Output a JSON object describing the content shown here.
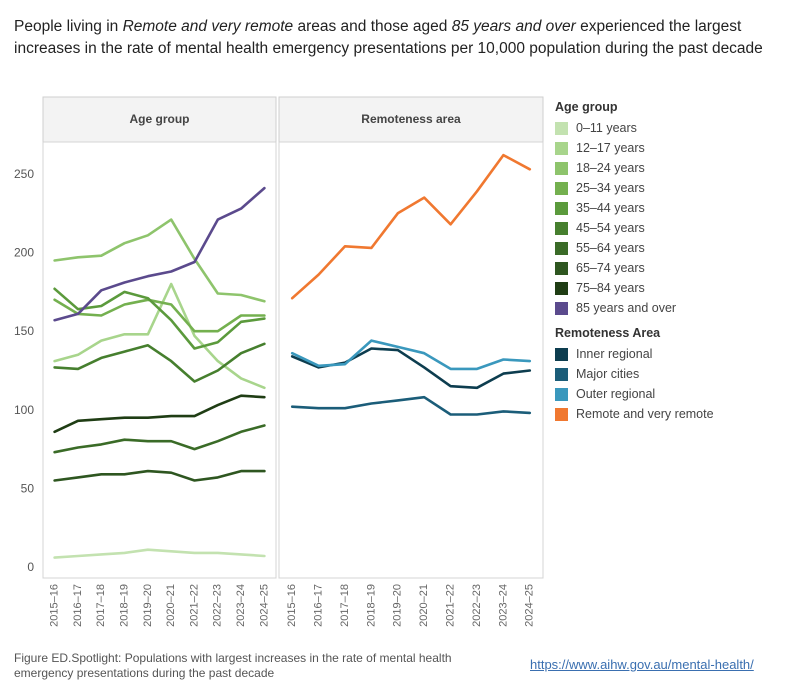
{
  "title": {
    "p1": "People living in ",
    "em1": "Remote and very remote",
    "p2": " areas and those aged ",
    "em2": "85 years and over",
    "p3": " experienced the largest increases in the rate of mental health emergency presentations per 10,000 population during the past decade"
  },
  "footer": {
    "caption": "Figure ED.Spotlight: Populations with largest increases in the rate of mental health emergency presentations during the past decade",
    "link": "https://www.aihw.gov.au/mental-health/"
  },
  "chart_data": {
    "type": "line",
    "ylim": [
      0,
      260
    ],
    "yticks": [
      0,
      50,
      100,
      150,
      200,
      250
    ],
    "categories": [
      "2015–16",
      "2016–17",
      "2017–18",
      "2018–19",
      "2019–20",
      "2020–21",
      "2021–22",
      "2022–23",
      "2023–24",
      "2024–25"
    ],
    "panels": [
      {
        "title": "Age group",
        "series": [
          {
            "name": "0–11 years",
            "color": "#c3e2b0",
            "values": [
              6,
              7,
              8,
              9,
              11,
              10,
              9,
              9,
              8,
              7
            ]
          },
          {
            "name": "12–17 years",
            "color": "#a8d58c",
            "values": [
              131,
              135,
              144,
              148,
              148,
              180,
              147,
              131,
              120,
              114
            ]
          },
          {
            "name": "18–24 years",
            "color": "#8ec46c",
            "values": [
              195,
              197,
              198,
              206,
              211,
              221,
              196,
              174,
              173,
              169
            ]
          },
          {
            "name": "25–34 years",
            "color": "#74b04f",
            "values": [
              170,
              161,
              160,
              167,
              170,
              167,
              150,
              150,
              160,
              160
            ]
          },
          {
            "name": "35–44 years",
            "color": "#5b9a3c",
            "values": [
              177,
              164,
              166,
              175,
              171,
              157,
              139,
              143,
              156,
              158
            ]
          },
          {
            "name": "45–54 years",
            "color": "#467f2e",
            "values": [
              127,
              126,
              133,
              137,
              141,
              131,
              118,
              125,
              136,
              142
            ]
          },
          {
            "name": "55–64 years",
            "color": "#3a6b27",
            "values": [
              73,
              76,
              78,
              81,
              80,
              80,
              75,
              80,
              86,
              90
            ]
          },
          {
            "name": "65–74 years",
            "color": "#2e5620",
            "values": [
              55,
              57,
              59,
              59,
              61,
              60,
              55,
              57,
              61,
              61
            ]
          },
          {
            "name": "75–84 years",
            "color": "#1f3d14",
            "values": [
              86,
              93,
              94,
              95,
              95,
              96,
              96,
              103,
              109,
              108
            ]
          },
          {
            "name": "85 years and over",
            "color": "#5b4a8d",
            "values": [
              157,
              161,
              176,
              181,
              185,
              188,
              194,
              221,
              228,
              241
            ]
          }
        ]
      },
      {
        "title": "Remoteness area",
        "series": [
          {
            "name": "Inner regional",
            "color": "#0d3d4f",
            "values": [
              134,
              127,
              130,
              139,
              138,
              127,
              115,
              114,
              123,
              125
            ]
          },
          {
            "name": "Major cities",
            "color": "#1b5d79",
            "values": [
              102,
              101,
              101,
              104,
              106,
              108,
              97,
              97,
              99,
              98
            ]
          },
          {
            "name": "Outer regional",
            "color": "#3a98bd",
            "values": [
              136,
              128,
              129,
              144,
              140,
              136,
              126,
              126,
              132,
              131
            ]
          },
          {
            "name": "Remote and very remote",
            "color": "#f07830",
            "values": [
              171,
              186,
              204,
              203,
              225,
              235,
              218,
              239,
              262,
              253
            ]
          }
        ]
      }
    ],
    "legend": [
      {
        "title": "Age group",
        "items": [
          {
            "label": "0–11 years",
            "color": "#c3e2b0"
          },
          {
            "label": "12–17 years",
            "color": "#a8d58c"
          },
          {
            "label": "18–24 years",
            "color": "#8ec46c"
          },
          {
            "label": "25–34 years",
            "color": "#74b04f"
          },
          {
            "label": "35–44 years",
            "color": "#5b9a3c"
          },
          {
            "label": "45–54 years",
            "color": "#467f2e"
          },
          {
            "label": "55–64 years",
            "color": "#3a6b27"
          },
          {
            "label": "65–74 years",
            "color": "#2e5620"
          },
          {
            "label": "75–84 years",
            "color": "#1f3d14"
          },
          {
            "label": "85 years and over",
            "color": "#5b4a8d"
          }
        ]
      },
      {
        "title": "Remoteness Area",
        "items": [
          {
            "label": "Inner regional",
            "color": "#0d3d4f"
          },
          {
            "label": "Major cities",
            "color": "#1b5d79"
          },
          {
            "label": "Outer regional",
            "color": "#3a98bd"
          },
          {
            "label": "Remote and very remote",
            "color": "#f07830"
          }
        ]
      }
    ]
  }
}
